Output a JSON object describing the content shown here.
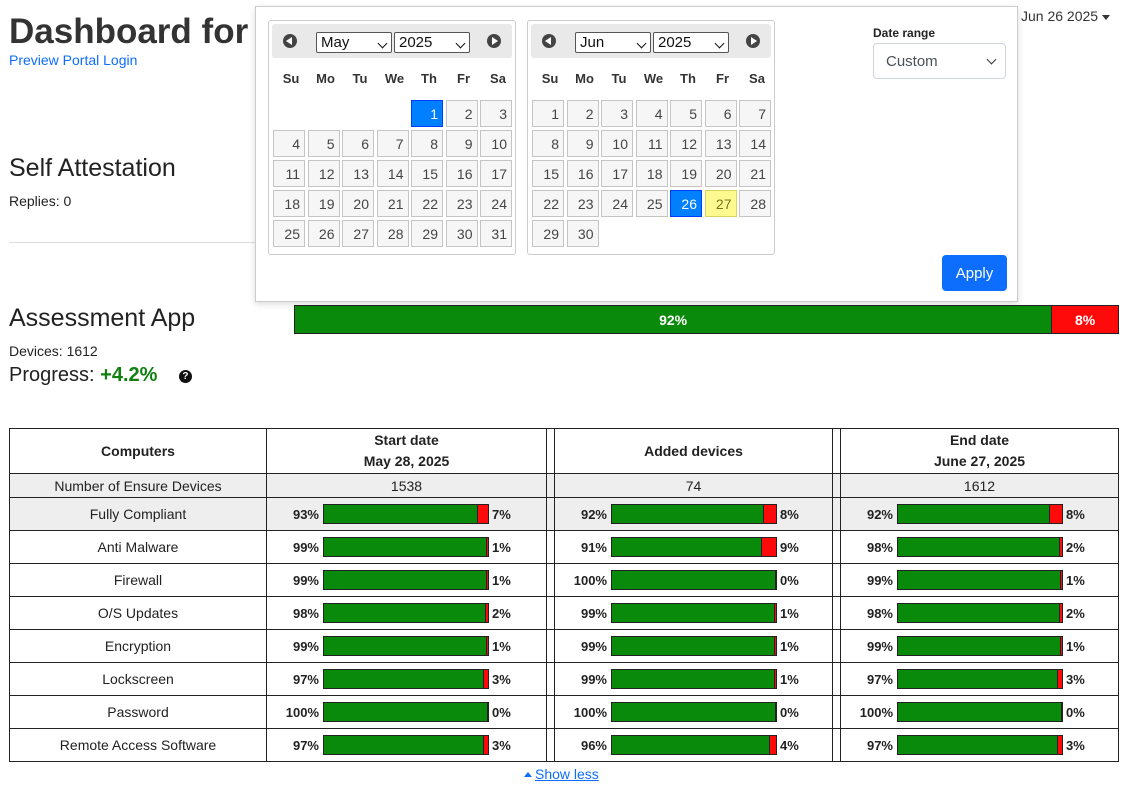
{
  "header": {
    "title": "Dashboard for",
    "portal_link": "Preview Portal Login",
    "date_dropdown": "Jun 26 2025"
  },
  "self_attestation": {
    "title": "Self Attestation",
    "replies": "Replies: 0"
  },
  "assessment": {
    "title": "Assessment App",
    "devices": "Devices: 1612",
    "progress_label": "Progress:",
    "progress_value": "+4.2%",
    "help_icon": "question-circle-icon",
    "bar": {
      "green": 92,
      "red": 8,
      "green_label": "92%",
      "red_label": "8%"
    }
  },
  "date_picker": {
    "weekdays": [
      "Su",
      "Mo",
      "Tu",
      "We",
      "Th",
      "Fr",
      "Sa"
    ],
    "left": {
      "month": "May",
      "year": "2025",
      "start_weekday": 4,
      "days": 31,
      "active": 1,
      "today": null
    },
    "right": {
      "month": "Jun",
      "year": "2025",
      "start_weekday": 0,
      "days": 30,
      "active": 26,
      "today": 27
    },
    "range_label": "Date range",
    "range_value": "Custom",
    "apply_label": "Apply"
  },
  "table": {
    "headers": {
      "computers": "Computers",
      "start_title": "Start date",
      "start_date": "May 28, 2025",
      "added": "Added devices",
      "end_title": "End date",
      "end_date": "June 27, 2025"
    },
    "count_row": {
      "label": "Number of Ensure Devices",
      "start": "1538",
      "added": "74",
      "end": "1612"
    },
    "rows": [
      {
        "label": "Fully Compliant",
        "start": [
          93,
          7
        ],
        "added": [
          92,
          8
        ],
        "end": [
          92,
          8
        ]
      },
      {
        "label": "Anti Malware",
        "start": [
          99,
          1
        ],
        "added": [
          91,
          9
        ],
        "end": [
          98,
          2
        ]
      },
      {
        "label": "Firewall",
        "start": [
          99,
          1
        ],
        "added": [
          100,
          0
        ],
        "end": [
          99,
          1
        ]
      },
      {
        "label": "O/S Updates",
        "start": [
          98,
          2
        ],
        "added": [
          99,
          1
        ],
        "end": [
          98,
          2
        ]
      },
      {
        "label": "Encryption",
        "start": [
          99,
          1
        ],
        "added": [
          99,
          1
        ],
        "end": [
          99,
          1
        ]
      },
      {
        "label": "Lockscreen",
        "start": [
          97,
          3
        ],
        "added": [
          99,
          1
        ],
        "end": [
          97,
          3
        ]
      },
      {
        "label": "Password",
        "start": [
          100,
          0
        ],
        "added": [
          100,
          0
        ],
        "end": [
          100,
          0
        ]
      },
      {
        "label": "Remote Access Software",
        "start": [
          97,
          3
        ],
        "added": [
          96,
          4
        ],
        "end": [
          97,
          3
        ]
      }
    ]
  },
  "show_less": "Show less",
  "colors": {
    "green": "#0a8a0a",
    "red": "#ff0a0a",
    "link": "#0d6efd"
  }
}
